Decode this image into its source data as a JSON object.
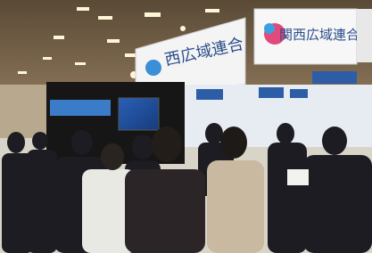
{
  "signs": {
    "left": {
      "label": "西広域連合"
    },
    "right": {
      "label": "関西広域連合"
    }
  }
}
